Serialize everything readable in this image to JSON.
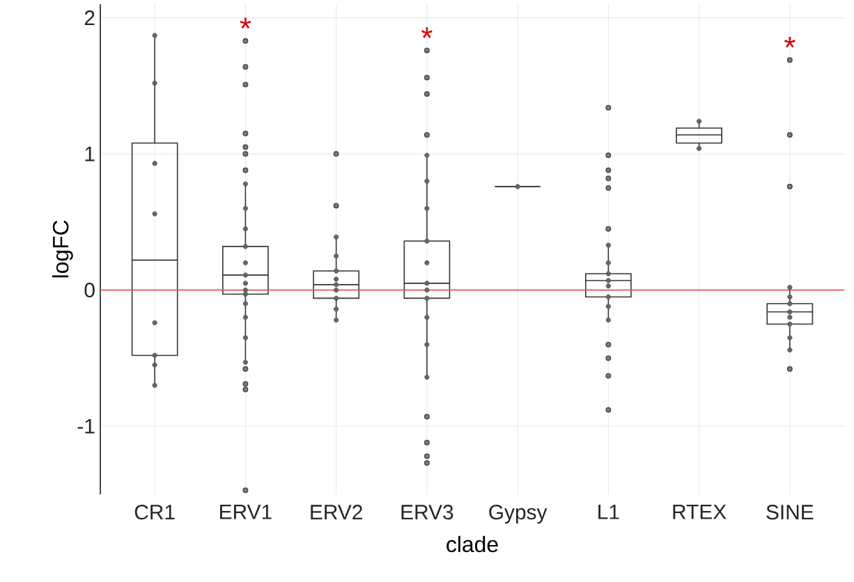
{
  "chart_data": {
    "type": "box",
    "xlabel": "clade",
    "ylabel": "logFC",
    "categories": [
      "CR1",
      "ERV1",
      "ERV2",
      "ERV3",
      "Gypsy",
      "L1",
      "RTEX",
      "SINE"
    ],
    "ylim": [
      -1.5,
      2.1
    ],
    "yticks": [
      -1,
      0,
      1,
      2
    ],
    "grid": true,
    "ref_lines": [
      {
        "axis": "y",
        "value": 0,
        "color": "#e8545a"
      }
    ],
    "annotations": [
      "*",
      "*",
      "*"
    ],
    "series": [
      {
        "color": "#333333",
        "boxes": [
          {
            "low": -0.7,
            "q1": -0.48,
            "median": 0.22,
            "q3": 1.08,
            "high": 1.87
          },
          {
            "low": -0.53,
            "q1": -0.03,
            "median": 0.11,
            "q3": 0.32,
            "high": 0.78,
            "outliers": [
              1.83,
              1.64,
              1.51,
              1.15,
              1.05,
              1.0,
              0.88,
              -0.58,
              -0.69,
              -0.73,
              -1.47
            ]
          },
          {
            "low": -0.22,
            "q1": -0.06,
            "median": 0.04,
            "q3": 0.14,
            "high": 0.39,
            "outliers": [
              1.0,
              0.62
            ]
          },
          {
            "low": -0.64,
            "q1": -0.06,
            "median": 0.05,
            "q3": 0.36,
            "high": 0.99,
            "outliers": [
              1.76,
              1.56,
              1.44,
              1.14,
              -0.93,
              -1.12,
              -1.22,
              -1.27
            ]
          },
          {
            "low": 0.76,
            "q1": 0.76,
            "median": 0.76,
            "q3": 0.76,
            "high": 0.76
          },
          {
            "low": -0.22,
            "q1": -0.05,
            "median": 0.07,
            "q3": 0.12,
            "high": 0.33,
            "outliers": [
              1.34,
              0.99,
              0.88,
              0.82,
              0.75,
              0.45,
              -0.4,
              -0.5,
              -0.63,
              -0.88
            ]
          },
          {
            "low": 1.04,
            "q1": 1.08,
            "median": 1.14,
            "q3": 1.19,
            "high": 1.24
          },
          {
            "low": -0.44,
            "q1": -0.25,
            "median": -0.16,
            "q3": -0.1,
            "high": 0.02,
            "outliers": [
              1.69,
              1.14,
              0.76,
              -0.58
            ]
          }
        ]
      },
      {
        "type": "scatter",
        "color": "#666666",
        "x": [
          "CR1",
          "CR1",
          "CR1",
          "CR1",
          "CR1",
          "CR1",
          "CR1",
          "CR1",
          "ERV1",
          "ERV1",
          "ERV1",
          "ERV1",
          "ERV1",
          "ERV1",
          "ERV1",
          "ERV1",
          "ERV1",
          "ERV1",
          "ERV1",
          "ERV1",
          "ERV1",
          "ERV2",
          "ERV2",
          "ERV2",
          "ERV2",
          "ERV2",
          "ERV2",
          "ERV2",
          "ERV2",
          "ERV2",
          "ERV3",
          "ERV3",
          "ERV3",
          "ERV3",
          "ERV3",
          "ERV3",
          "ERV3",
          "ERV3",
          "ERV3",
          "ERV3",
          "ERV3",
          "Gypsy",
          "L1",
          "L1",
          "L1",
          "L1",
          "L1",
          "L1",
          "L1",
          "L1",
          "RTEX",
          "RTEX",
          "SINE",
          "SINE",
          "SINE",
          "SINE",
          "SINE",
          "SINE",
          "SINE",
          "SINE"
        ],
        "values": [
          1.87,
          1.52,
          0.93,
          0.56,
          -0.24,
          -0.48,
          -0.55,
          -0.7,
          0.78,
          0.6,
          0.45,
          0.32,
          0.2,
          0.11,
          0.05,
          0,
          -0.03,
          -0.1,
          -0.2,
          -0.35,
          -0.53,
          0.39,
          0.25,
          0.14,
          0.08,
          0.04,
          0,
          -0.06,
          -0.14,
          -0.22,
          0.99,
          0.8,
          0.6,
          0.36,
          0.2,
          0.05,
          0,
          -0.06,
          -0.2,
          -0.4,
          -0.64,
          0.76,
          0.33,
          0.2,
          0.12,
          0.07,
          0.03,
          -0.05,
          -0.12,
          -0.22,
          1.24,
          1.04,
          0.02,
          -0.05,
          -0.1,
          -0.16,
          -0.2,
          -0.25,
          -0.35,
          -0.44
        ]
      }
    ]
  }
}
